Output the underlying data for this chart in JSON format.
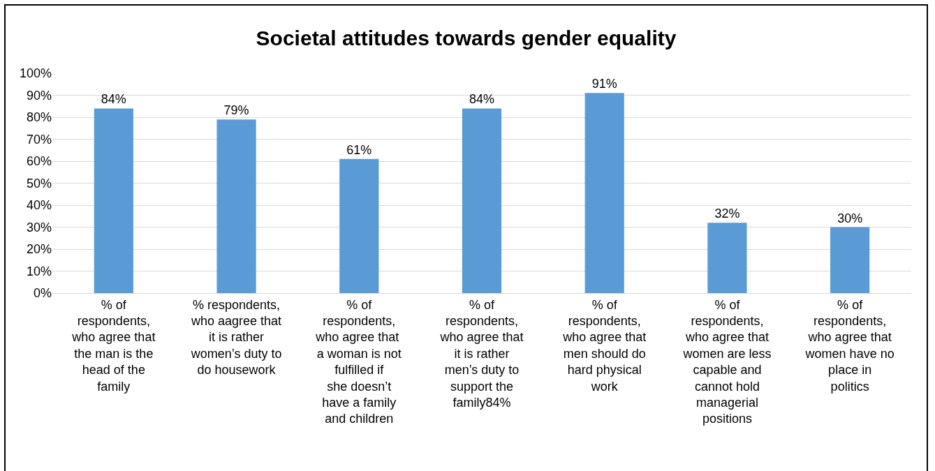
{
  "chart_data": {
    "type": "bar",
    "title": "Societal attitudes towards gender equality",
    "categories": [
      "% of respondents, who agree that the man is the head of the family",
      "% respondents, who aagree that it is rather women’s duty to do housework",
      "% of respondents, who agree that  a woman is not fulfilled if she doesn’t have a family and children",
      "% of respondents, who agree that it is rather men’s duty to support the family84%",
      "% of respondents, who agree that men should do hard physical work",
      "% of respondents, who agree that women are less capable and cannot hold managerial positions",
      "% of respondents, who agree that women have no place in politics"
    ],
    "values": [
      84,
      79,
      61,
      84,
      91,
      32,
      30
    ],
    "value_labels": [
      "84%",
      "79%",
      "61%",
      "84%",
      "91%",
      "32%",
      "30%"
    ],
    "color": "#5b9bd5",
    "ylim": [
      0,
      100
    ],
    "yticks": [
      {
        "value": 0,
        "label": "0%"
      },
      {
        "value": 10,
        "label": "10%"
      },
      {
        "value": 20,
        "label": "20%"
      },
      {
        "value": 30,
        "label": "30%"
      },
      {
        "value": 40,
        "label": "40%"
      },
      {
        "value": 50,
        "label": "50%"
      },
      {
        "value": 60,
        "label": "60%"
      },
      {
        "value": 70,
        "label": "70%"
      },
      {
        "value": 80,
        "label": "80%"
      },
      {
        "value": 90,
        "label": "90%"
      },
      {
        "value": 100,
        "label": "100%"
      }
    ],
    "grid": "y"
  }
}
